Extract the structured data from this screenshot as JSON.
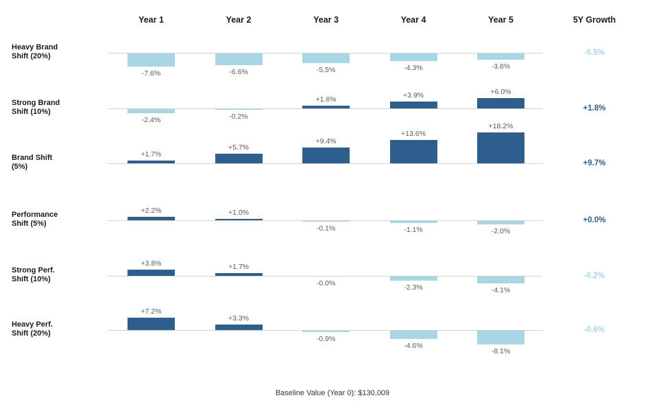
{
  "header": {
    "year_columns": [
      "Year 1",
      "Year 2",
      "Year 3",
      "Year 4",
      "Year 5"
    ],
    "growth_label": "5Y Growth"
  },
  "footer": {
    "baseline_note": "Baseline Value (Year 0): $130,009"
  },
  "colors": {
    "positive_bar": "#2e5f8c",
    "negative_bar": "#a9d6e5",
    "baseline_line": "#d0d0d0",
    "value_label_text": "#595959",
    "heading_text": "#1a1a1a",
    "footer_text": "#333333",
    "background": "#ffffff"
  },
  "chart_data": {
    "type": "bar",
    "title": "",
    "xlabel": "",
    "ylabel": "",
    "grid": false,
    "legend": false,
    "categories": [
      "Year 1",
      "Year 2",
      "Year 3",
      "Year 4",
      "Year 5"
    ],
    "growth_column_label": "5Y Growth",
    "baseline_note": "Baseline Value (Year 0): $130,009",
    "baseline_value": "$130,009",
    "rows": [
      {
        "label": "Heavy Brand Shift (20%)",
        "label_lines": [
          "Heavy Brand",
          "Shift (20%)"
        ],
        "values": [
          -7.6,
          -6.6,
          -5.5,
          -4.3,
          -3.6
        ],
        "value_labels": [
          "-7.6%",
          "-6.6%",
          "-5.5%",
          "-4.3%",
          "-3.6%"
        ],
        "growth_label": "-5.5%",
        "growth_sign": "negative"
      },
      {
        "label": "Strong Brand Shift (10%)",
        "label_lines": [
          "Strong Brand",
          "Shift (10%)"
        ],
        "values": [
          -2.4,
          -0.2,
          1.6,
          3.9,
          6.0
        ],
        "value_labels": [
          "-2.4%",
          "-0.2%",
          "+1.6%",
          "+3.9%",
          "+6.0%"
        ],
        "growth_label": "+1.8%",
        "growth_sign": "positive"
      },
      {
        "label": "Brand Shift (5%)",
        "label_lines": [
          "Brand Shift",
          "(5%)"
        ],
        "values": [
          1.7,
          5.7,
          9.4,
          13.6,
          18.2
        ],
        "value_labels": [
          "+1.7%",
          "+5.7%",
          "+9.4%",
          "+13.6%",
          "+18.2%"
        ],
        "growth_label": "+9.7%",
        "growth_sign": "positive"
      },
      {
        "label": "Performance Shift (5%)",
        "label_lines": [
          "Performance",
          "Shift (5%)"
        ],
        "values": [
          2.2,
          1.0,
          -0.1,
          -1.1,
          -2.0
        ],
        "value_labels": [
          "+2.2%",
          "+1.0%",
          "-0.1%",
          "-1.1%",
          "-2.0%"
        ],
        "growth_label": "+0.0%",
        "growth_sign": "positive"
      },
      {
        "label": "Strong Perf. Shift (10%)",
        "label_lines": [
          "Strong Perf.",
          "Shift (10%)"
        ],
        "values": [
          3.8,
          1.7,
          -0.0,
          -2.3,
          -4.1
        ],
        "value_labels": [
          "+3.8%",
          "+1.7%",
          "-0.0%",
          "-2.3%",
          "-4.1%"
        ],
        "growth_label": "-0.2%",
        "growth_sign": "negative"
      },
      {
        "label": "Heavy Perf. Shift (20%)",
        "label_lines": [
          "Heavy Perf.",
          "Shift (20%)"
        ],
        "values": [
          7.2,
          3.3,
          -0.9,
          -4.6,
          -8.1
        ],
        "value_labels": [
          "+7.2%",
          "+3.3%",
          "-0.9%",
          "-4.6%",
          "-8.1%"
        ],
        "growth_label": "-0.6%",
        "growth_sign": "negative"
      }
    ]
  }
}
